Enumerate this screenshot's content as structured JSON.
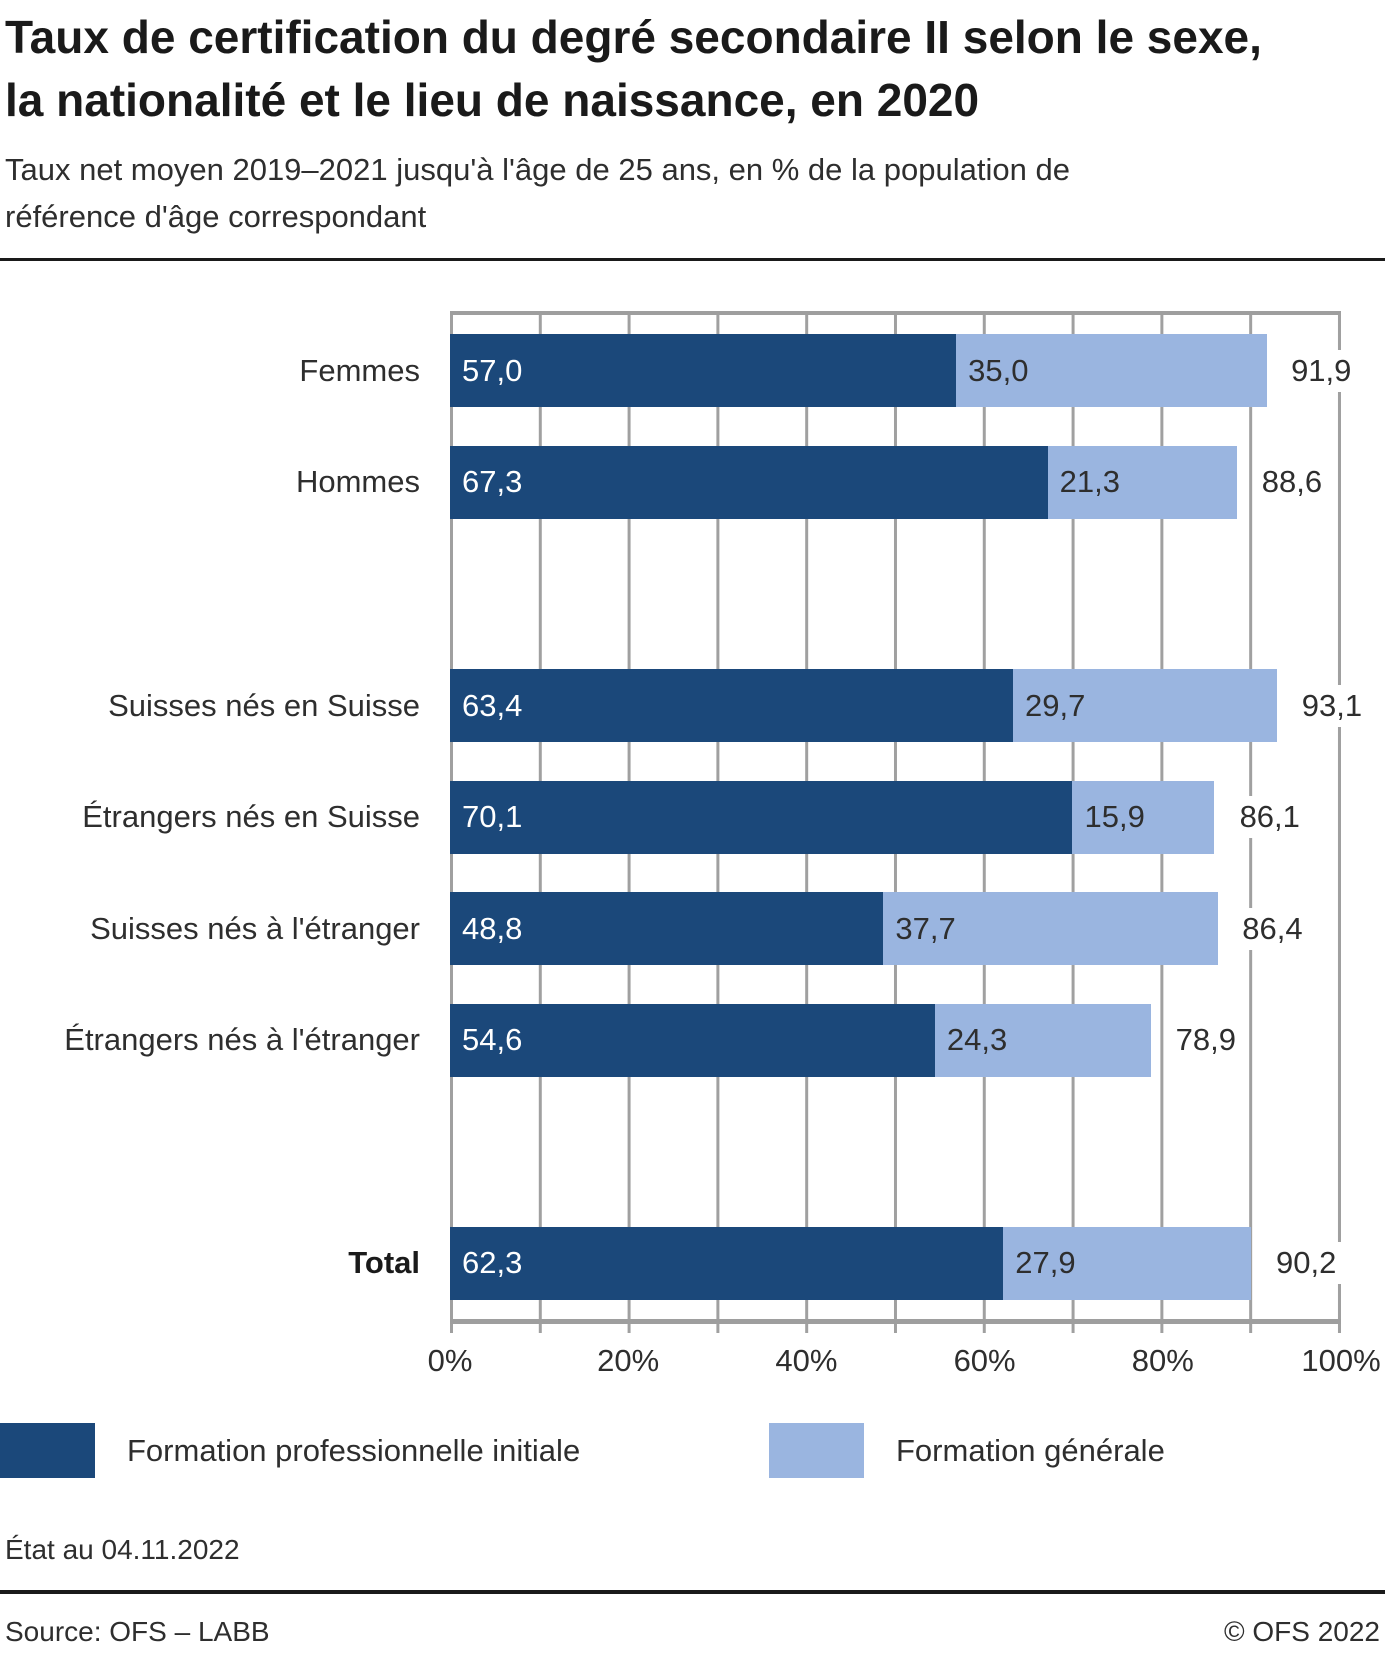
{
  "header": {
    "title": "Taux de certification du degré secondaire II selon le sexe, la nationalité et le lieu de naissance, en 2020",
    "subtitle": "Taux net moyen 2019–2021 jusqu'à l'âge de 25 ans, en % de la population de référence d'âge correspondant"
  },
  "chart_data": {
    "type": "bar",
    "orientation": "horizontal",
    "stacked": true,
    "grid": true,
    "xlim": [
      0,
      100
    ],
    "gridline_step_pct": 10,
    "x_tick_labels": [
      "0%",
      "20%",
      "40%",
      "60%",
      "80%",
      "100%"
    ],
    "categories": [
      "Femmes",
      "Hommes",
      "Suisses nés en Suisse",
      "Étrangers nés en Suisse",
      "Suisses nés à l'étranger",
      "Étrangers nés à l'étranger",
      "Total"
    ],
    "series": [
      {
        "name": "Formation professionnelle initiale",
        "color": "#1b487a",
        "values": [
          57.0,
          67.3,
          63.4,
          70.1,
          48.8,
          54.6,
          62.3
        ]
      },
      {
        "name": "Formation générale",
        "color": "#9ab5e0",
        "values": [
          35.0,
          21.3,
          29.7,
          15.9,
          37.7,
          24.3,
          27.9
        ]
      }
    ],
    "totals": [
      91.9,
      88.6,
      93.1,
      86.1,
      86.4,
      78.9,
      90.2
    ],
    "rows": [
      {
        "label": "Femmes",
        "slot": 0,
        "bold": false,
        "values": [
          57.0,
          35.0
        ],
        "value_labels": [
          "57,0",
          "35,0"
        ],
        "total": 91.9,
        "total_label": "91,9"
      },
      {
        "label": "Hommes",
        "slot": 1,
        "bold": false,
        "values": [
          67.3,
          21.3
        ],
        "value_labels": [
          "67,3",
          "21,3"
        ],
        "total": 88.6,
        "total_label": "88,6"
      },
      {
        "label": "Suisses nés en Suisse",
        "slot": 3,
        "bold": false,
        "values": [
          63.4,
          29.7
        ],
        "value_labels": [
          "63,4",
          "29,7"
        ],
        "total": 93.1,
        "total_label": "93,1"
      },
      {
        "label": "Étrangers nés en Suisse",
        "slot": 4,
        "bold": false,
        "values": [
          70.1,
          15.9
        ],
        "value_labels": [
          "70,1",
          "15,9"
        ],
        "total": 86.1,
        "total_label": "86,1"
      },
      {
        "label": "Suisses nés à l'étranger",
        "slot": 5,
        "bold": false,
        "values": [
          48.8,
          37.7
        ],
        "value_labels": [
          "48,8",
          "37,7"
        ],
        "total": 86.4,
        "total_label": "86,4"
      },
      {
        "label": "Étrangers nés à l'étranger",
        "slot": 6,
        "bold": false,
        "values": [
          54.6,
          24.3
        ],
        "value_labels": [
          "54,6",
          "24,3"
        ],
        "total": 78.9,
        "total_label": "78,9"
      },
      {
        "label": "Total",
        "slot": 8,
        "bold": true,
        "values": [
          62.3,
          27.9
        ],
        "value_labels": [
          "62,3",
          "27,9"
        ],
        "total": 90.2,
        "total_label": "90,2"
      }
    ],
    "legend_position": "bottom"
  },
  "legend": {
    "items": [
      {
        "label": "Formation professionnelle initiale",
        "color": "#1b487a"
      },
      {
        "label": "Formation générale",
        "color": "#9ab5e0"
      }
    ]
  },
  "status_note": "État au 04.11.2022",
  "footer": {
    "source": "Source: OFS – LABB",
    "copyright": "© OFS 2022"
  },
  "colors": {
    "vocational": "#1b487a",
    "general": "#9ab5e0",
    "gridline": "#a0a0a0",
    "axis": "#9e9e9e",
    "rule": "#1a1a1a"
  }
}
